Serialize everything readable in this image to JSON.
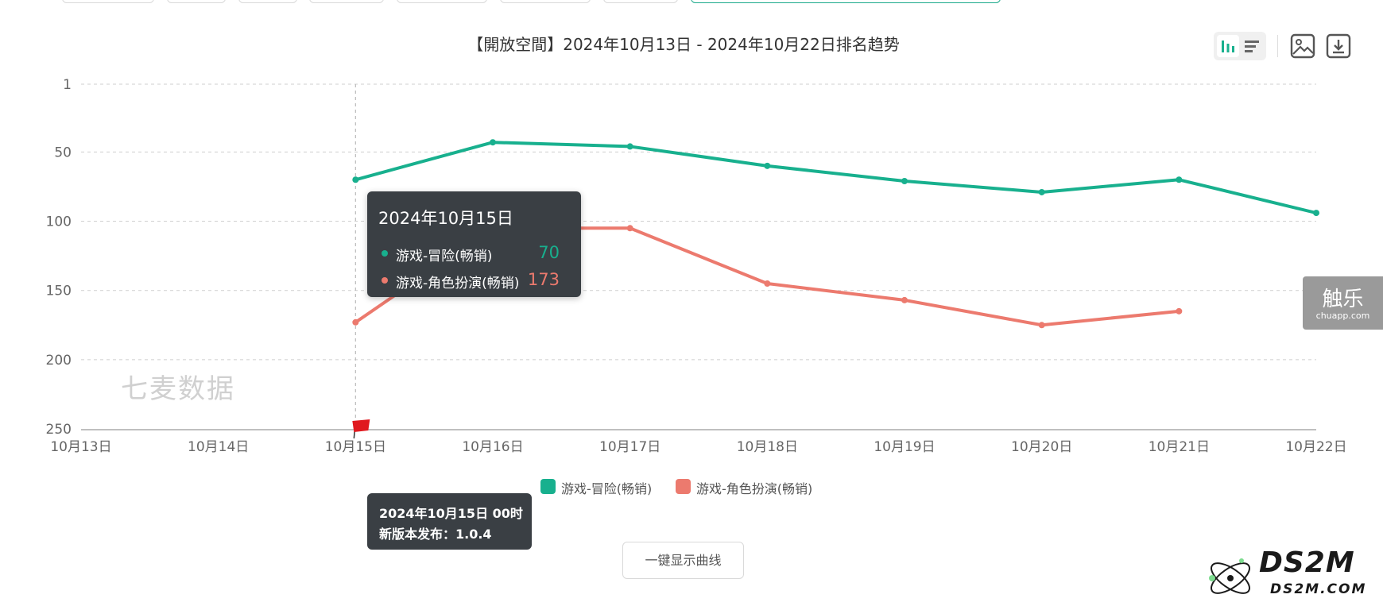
{
  "colors": {
    "series_adventure": "#18b08e",
    "series_rpg": "#ec7a6e",
    "grid": "#cfcfcf",
    "tooltip_bg": "#3a3f44"
  },
  "chart_data": {
    "type": "line",
    "title": "【開放空間】2024年10月13日 - 2024年10月22日排名趋势",
    "xlabel": "",
    "ylabel": "",
    "y_inverted": true,
    "ylim": [
      1,
      250
    ],
    "yticks": [
      "1",
      "50",
      "100",
      "150",
      "200",
      "250"
    ],
    "categories": [
      "10月13日",
      "10月14日",
      "10月15日",
      "10月16日",
      "10月17日",
      "10月18日",
      "10月19日",
      "10月20日",
      "10月21日",
      "10月22日"
    ],
    "series": [
      {
        "name": "游戏-冒险(畅销)",
        "color_key": "series_adventure",
        "values": [
          null,
          null,
          70,
          43,
          46,
          60,
          71,
          79,
          70,
          94
        ]
      },
      {
        "name": "游戏-角色扮演(畅销)",
        "color_key": "series_rpg",
        "values": [
          null,
          null,
          173,
          105,
          105,
          145,
          157,
          175,
          165,
          null
        ]
      }
    ],
    "grid": true,
    "legend_position": "bottom-center",
    "annotation": {
      "category": "10月15日",
      "marker": "flag",
      "text": "2024年10月15日 00时",
      "detail": "新版本发布：1.0.4"
    }
  },
  "tooltip": {
    "title": "2024年10月15日",
    "rows": [
      {
        "label": "游戏-冒险(畅销)",
        "value": "70"
      },
      {
        "label": "游戏-角色扮演(畅销)",
        "value": "173"
      }
    ]
  },
  "flag_tooltip": {
    "line1": "2024年10月15日 00时",
    "line2": "新版本发布：1.0.4"
  },
  "watermark": "七麦数据",
  "show_all_button": "一键显示曲线",
  "toolbar": {
    "icons": [
      "bar-view-icon",
      "list-view-icon",
      "save-image-icon",
      "download-icon"
    ]
  },
  "side_brand": {
    "name": "触乐",
    "domain": "chuapp.com"
  },
  "corner_brand": {
    "name": "DS2M",
    "domain": "DS2M.COM"
  }
}
